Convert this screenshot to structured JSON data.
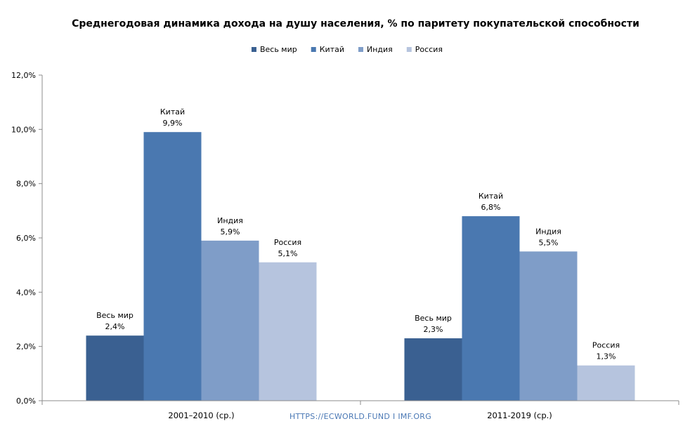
{
  "chart_data": {
    "type": "bar",
    "title": "Среднегодовая динамика дохода на душу населения, % по паритету покупательской способности",
    "categories": [
      "2001–2010 (ср.)",
      "2011-2019 (ср.)"
    ],
    "series": [
      {
        "name": "Весь мир",
        "values": [
          2.4,
          2.3
        ],
        "color": "#3a6091",
        "labels": [
          "2,4%",
          "2,3%"
        ]
      },
      {
        "name": "Китай",
        "values": [
          9.9,
          6.8
        ],
        "color": "#4a78b0",
        "labels": [
          "9,9%",
          "6,8%"
        ]
      },
      {
        "name": "Индия",
        "values": [
          5.9,
          5.5
        ],
        "color": "#7f9dc8",
        "labels": [
          "5,9%",
          "5,5%"
        ]
      },
      {
        "name": "Россия",
        "values": [
          5.1,
          1.3
        ],
        "color": "#b6c4de",
        "labels": [
          "5,1%",
          "1,3%"
        ]
      }
    ],
    "ylim": [
      0,
      12
    ],
    "yticks": [
      "0,0%",
      "2,0%",
      "4,0%",
      "6,0%",
      "8,0%",
      "10,0%",
      "12,0%"
    ],
    "legend_position": "top-center",
    "grid": false,
    "watermark": "HTTPS://ECWORLD.FUND I IMF.ORG"
  }
}
